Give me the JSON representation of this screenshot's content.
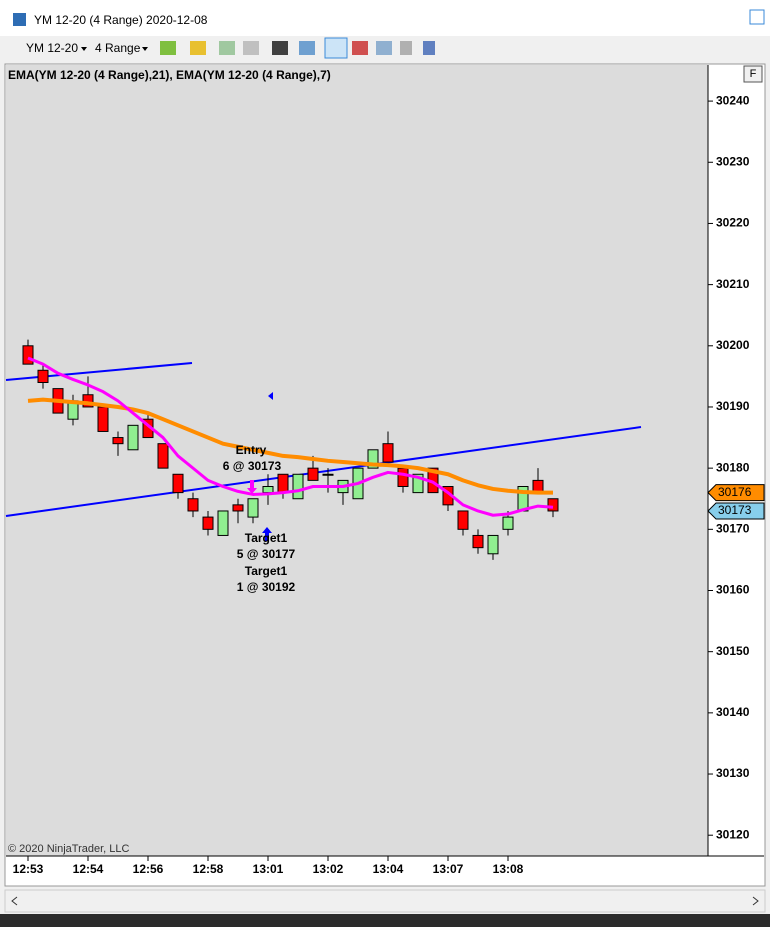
{
  "window": {
    "title": "YM 12-20 (4 Range)  2020-12-08",
    "instrument": "YM 12-20",
    "period": "4 Range",
    "panel_button": "F",
    "copyright": "© 2020 NinjaTrader, LLC"
  },
  "chart_data": {
    "type": "candlestick",
    "indicator_label": "EMA(YM 12-20 (4 Range),21), EMA(YM 12-20 (4 Range),7)",
    "categories": [
      "12:53",
      null,
      null,
      null,
      "12:54",
      null,
      null,
      null,
      "12:56",
      null,
      null,
      null,
      "12:58",
      null,
      null,
      null,
      "13:01",
      null,
      null,
      null,
      "13:02",
      null,
      null,
      null,
      "13:04",
      null,
      null,
      null,
      "13:07",
      null,
      null,
      null,
      "13:08",
      null,
      null,
      null
    ],
    "open": [
      30200,
      30196,
      30193,
      30188,
      30192,
      30190,
      30185,
      30183,
      30188,
      30184,
      30179,
      30175,
      30172,
      30169,
      30174,
      30172,
      30176,
      30179,
      30175,
      30180,
      30179,
      30176,
      30175,
      30180,
      30184,
      30180,
      30176,
      30180,
      30177,
      30173,
      30169,
      30166,
      30170,
      30173,
      30178,
      30175
    ],
    "high": [
      30201,
      30197,
      30193,
      30192,
      30195,
      30190,
      30186,
      30187,
      30189,
      30184,
      30179,
      30176,
      30173,
      30173,
      30175,
      30175,
      30179,
      30179,
      30179,
      30182,
      30180,
      30178,
      30180,
      30183,
      30186,
      30180,
      30179,
      30180,
      30177,
      30173,
      30170,
      30169,
      30173,
      30177,
      30180,
      30175
    ],
    "low": [
      30197,
      30193,
      30189,
      30187,
      30190,
      30186,
      30182,
      30183,
      30185,
      30180,
      30175,
      30172,
      30169,
      30169,
      30171,
      30171,
      30174,
      30175,
      30175,
      30178,
      30176,
      30174,
      30175,
      30180,
      30181,
      30176,
      30176,
      30176,
      30173,
      30169,
      30166,
      30165,
      30169,
      30173,
      30176,
      30172
    ],
    "close": [
      30197,
      30194,
      30189,
      30191,
      30190,
      30186,
      30184,
      30187,
      30185,
      30180,
      30176,
      30173,
      30170,
      30173,
      30173,
      30175,
      30177,
      30176,
      30179,
      30178,
      30179,
      30178,
      30180,
      30183,
      30181,
      30177,
      30179,
      30176,
      30174,
      30170,
      30167,
      30169,
      30172,
      30177,
      30176,
      30173
    ],
    "up_color": "#90ee90",
    "down_color": "#ff0000",
    "series": [
      {
        "color": "#ff8c00",
        "marker": 30176,
        "values": [
          30191,
          30191.2,
          30191,
          30190.8,
          30190.6,
          30190.3,
          30190,
          30189.6,
          30189,
          30188,
          30187,
          30186,
          30185,
          30184,
          30183.5,
          30183,
          30182.5,
          30182,
          30181.8,
          30181.5,
          30181.2,
          30181,
          30180.8,
          30180.6,
          30180.5,
          30180.3,
          30180,
          30179.5,
          30179,
          30178,
          30177.2,
          30176.6,
          30176.3,
          30176.1,
          30176,
          30176
        ]
      },
      {
        "color": "#ff00ff",
        "marker": 30173,
        "values": [
          30198,
          30197,
          30195.5,
          30194.5,
          30193.6,
          30192.5,
          30191,
          30189,
          30187,
          30185,
          30182,
          30180,
          30178,
          30177,
          30176.2,
          30175.7,
          30175.8,
          30176,
          30176.3,
          30177,
          30177,
          30177,
          30177.5,
          30178.5,
          30179.3,
          30179,
          30178.5,
          30177.7,
          30176,
          30174,
          30173,
          30172.3,
          30172.5,
          30173.2,
          30173.8,
          30173.6
        ]
      }
    ],
    "annotations": [
      "Entry",
      "6 @ 30173",
      "Target1",
      "5 @ 30177",
      "Target1",
      "1 @ 30192"
    ],
    "ylim": [
      30116.6,
      30245.9
    ],
    "yticks": [
      30120,
      30130,
      30140,
      30150,
      30160,
      30170,
      30180,
      30190,
      30200,
      30210,
      30220,
      30230,
      30240
    ]
  }
}
